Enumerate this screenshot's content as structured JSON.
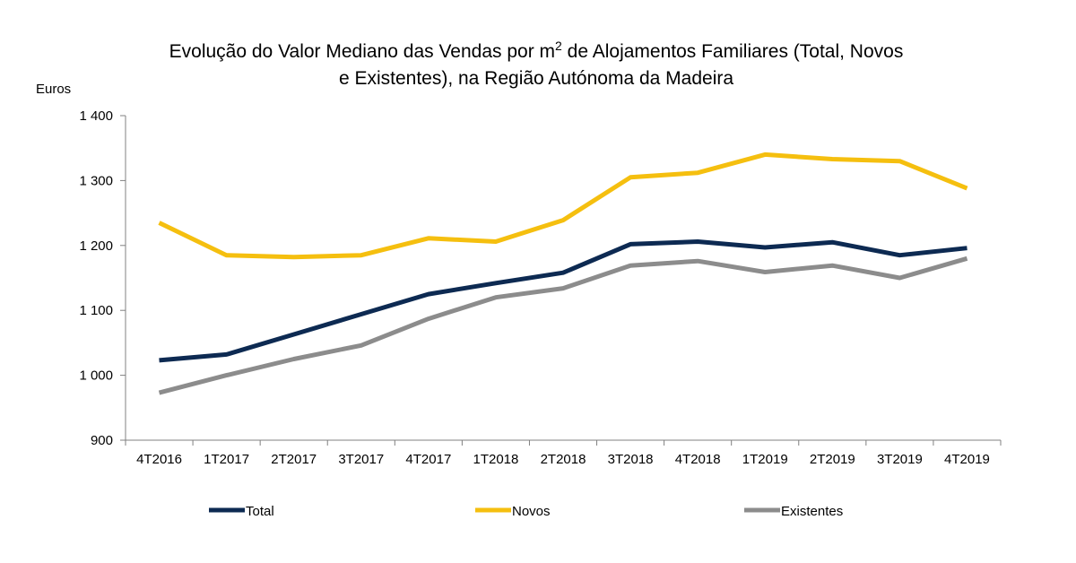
{
  "chart_data": {
    "type": "line",
    "title_line1": "Evolução do Valor Mediano das Vendas por m",
    "title_sup": "2",
    "title_line1_rest": " de Alojamentos Familiares (Total, Novos",
    "title_line2": "e Existentes), na Região Autónoma da Madeira",
    "ylabel": "Euros",
    "ylim": [
      900,
      1400
    ],
    "yticks": [
      900,
      1000,
      1100,
      1200,
      1300,
      1400
    ],
    "ytick_labels": [
      "900",
      "1 000",
      "1 100",
      "1 200",
      "1 300",
      "1 400"
    ],
    "categories": [
      "4T2016",
      "1T2017",
      "2T2017",
      "3T2017",
      "4T2017",
      "1T2018",
      "2T2018",
      "3T2018",
      "4T2018",
      "1T2019",
      "2T2019",
      "3T2019",
      "4T2019"
    ],
    "grid": false,
    "legend_position": "bottom",
    "series": [
      {
        "name": "Total",
        "color": "#0d2a52",
        "values": [
          1023,
          1032,
          1063,
          1094,
          1125,
          1142,
          1158,
          1202,
          1206,
          1197,
          1205,
          1185,
          1196
        ]
      },
      {
        "name": "Novos",
        "color": "#f5bf0f",
        "values": [
          1235,
          1185,
          1182,
          1185,
          1211,
          1206,
          1239,
          1305,
          1312,
          1340,
          1333,
          1330,
          1288
        ]
      },
      {
        "name": "Existentes",
        "color": "#8c8c8c",
        "values": [
          973,
          1000,
          1025,
          1046,
          1087,
          1120,
          1134,
          1169,
          1176,
          1159,
          1169,
          1150,
          1180
        ]
      }
    ]
  }
}
